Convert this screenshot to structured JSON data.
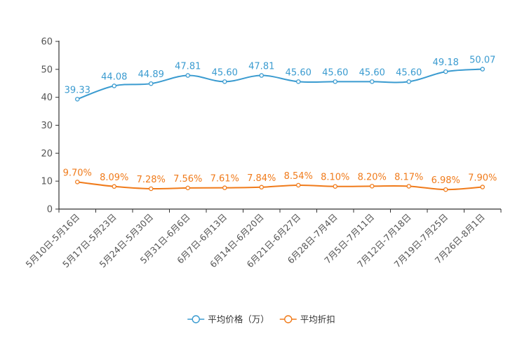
{
  "chart_data": {
    "type": "line",
    "title": "",
    "xlabel": "",
    "ylabel": "",
    "ylim": [
      0,
      60
    ],
    "yticks": [
      0,
      10,
      20,
      30,
      40,
      50,
      60
    ],
    "grid": false,
    "legend_position": "bottom-center",
    "categories": [
      "5月10日-5月16日",
      "5月17日-5月23日",
      "5月24日-5月30日",
      "5月31日-6月6日",
      "6月7日-6月13日",
      "6月14日-6月20日",
      "6月21日-6月27日",
      "6月28日-7月4日",
      "7月5日-7月11日",
      "7月12日-7月18日",
      "7月19日-7月25日",
      "7月26日-8月1日"
    ],
    "series": [
      {
        "name": "平均价格（万）",
        "color": "#3a9bd0",
        "values": [
          39.33,
          44.08,
          44.89,
          47.81,
          45.6,
          47.81,
          45.6,
          45.6,
          45.6,
          45.6,
          49.18,
          50.07
        ],
        "labels": [
          "39.33",
          "44.08",
          "44.89",
          "47.81",
          "45.60",
          "47.81",
          "45.60",
          "45.60",
          "45.60",
          "45.60",
          "49.18",
          "50.07"
        ]
      },
      {
        "name": "平均折扣",
        "color": "#f07b1b",
        "values": [
          9.7,
          8.09,
          7.28,
          7.56,
          7.61,
          7.84,
          8.54,
          8.1,
          8.2,
          8.17,
          6.98,
          7.9
        ],
        "labels": [
          "9.70%",
          "8.09%",
          "7.28%",
          "7.56%",
          "7.61%",
          "7.84%",
          "8.54%",
          "8.10%",
          "8.20%",
          "8.17%",
          "6.98%",
          "7.90%"
        ]
      }
    ]
  }
}
